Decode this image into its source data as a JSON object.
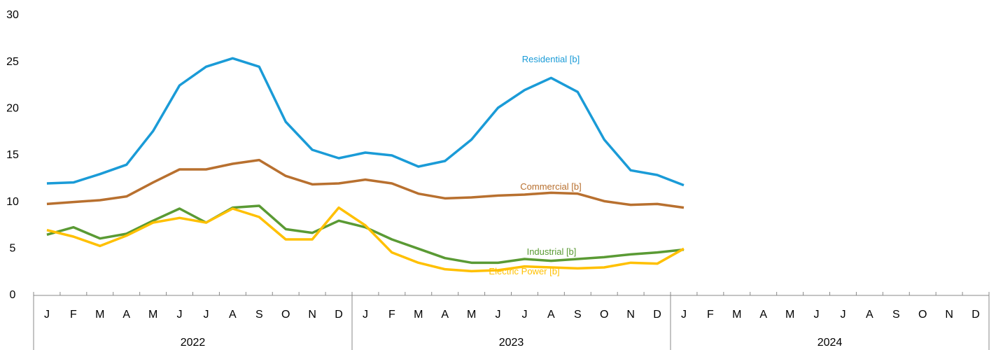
{
  "chart_data": {
    "type": "line",
    "categories": [
      "J",
      "F",
      "M",
      "A",
      "M",
      "J",
      "J",
      "A",
      "S",
      "O",
      "N",
      "D",
      "J",
      "F",
      "M",
      "A",
      "M",
      "J",
      "J",
      "A",
      "S",
      "O",
      "N",
      "D",
      "J",
      "F",
      "M",
      "A",
      "M",
      "J",
      "J",
      "A",
      "S",
      "O",
      "N",
      "D"
    ],
    "groups": [
      "2022",
      "2023",
      "2024"
    ],
    "ylim": [
      0,
      30
    ],
    "yticks": [
      0,
      5,
      10,
      15,
      20,
      25,
      30
    ],
    "grid": false,
    "series": [
      {
        "name": "Residential [b]",
        "color": "#1a9bd7",
        "values": [
          12.0,
          12.1,
          13.0,
          14.0,
          17.6,
          22.5,
          24.5,
          25.4,
          24.5,
          18.6,
          15.6,
          14.7,
          15.3,
          15.0,
          13.8,
          14.4,
          16.7,
          20.1,
          22.0,
          23.3,
          21.8,
          16.7,
          13.4,
          12.9,
          11.8,
          null,
          null,
          null,
          null,
          null,
          null,
          null,
          null,
          null,
          null,
          null
        ]
      },
      {
        "name": "Commercial [b]",
        "color": "#b8702f",
        "values": [
          9.8,
          10.0,
          10.2,
          10.6,
          12.1,
          13.5,
          13.5,
          14.1,
          14.5,
          12.8,
          11.9,
          12.0,
          12.4,
          12.0,
          10.9,
          10.4,
          10.5,
          10.7,
          10.8,
          11.0,
          10.9,
          10.1,
          9.7,
          9.8,
          9.4,
          null,
          null,
          null,
          null,
          null,
          null,
          null,
          null,
          null,
          null,
          null
        ]
      },
      {
        "name": "Industrial [b]",
        "color": "#5a9a34",
        "values": [
          6.5,
          7.3,
          6.1,
          6.6,
          8.0,
          9.3,
          7.8,
          9.4,
          9.6,
          7.1,
          6.7,
          8.0,
          7.3,
          6.0,
          5.0,
          4.0,
          3.5,
          3.5,
          3.9,
          3.7,
          3.9,
          4.1,
          4.4,
          4.6,
          4.9,
          null,
          null,
          null,
          null,
          null,
          null,
          null,
          null,
          null,
          null,
          null
        ]
      },
      {
        "name": "Electric Power [b]",
        "color": "#ffc000",
        "values": [
          7.0,
          6.3,
          5.3,
          6.4,
          7.8,
          8.3,
          7.8,
          9.3,
          8.4,
          6.0,
          6.0,
          9.4,
          7.5,
          4.6,
          3.5,
          2.8,
          2.6,
          2.7,
          3.1,
          3.0,
          2.9,
          3.0,
          3.5,
          3.4,
          5.0,
          null,
          null,
          null,
          null,
          null,
          null,
          null,
          null,
          null,
          null,
          null
        ]
      }
    ]
  }
}
